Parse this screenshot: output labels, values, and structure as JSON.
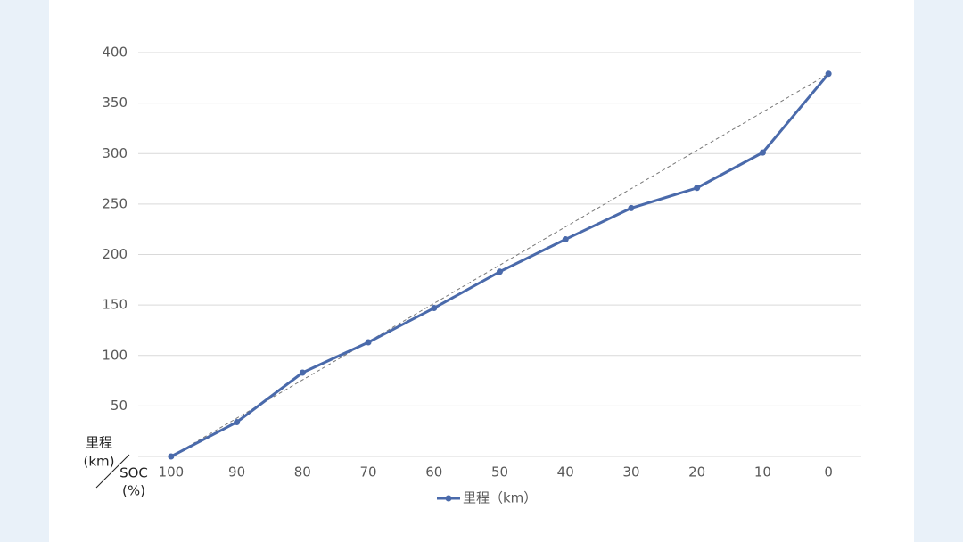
{
  "chart_data": {
    "type": "line",
    "categories": [
      "100",
      "90",
      "80",
      "70",
      "60",
      "50",
      "40",
      "30",
      "20",
      "10",
      "0"
    ],
    "series": [
      {
        "name": "里程（km）",
        "color": "#4a6aab",
        "values": [
          0,
          34,
          83,
          113,
          147,
          183,
          215,
          246,
          266,
          301,
          379
        ]
      }
    ],
    "ylim": [
      0,
      400
    ],
    "yticks": [
      50,
      100,
      150,
      200,
      250,
      300,
      350,
      400
    ],
    "y_label_lines": [
      "里程",
      "(km)"
    ],
    "x_label_lines": [
      "SOC",
      "(%)"
    ],
    "grid": true,
    "trendline": true,
    "legend": "bottom"
  }
}
